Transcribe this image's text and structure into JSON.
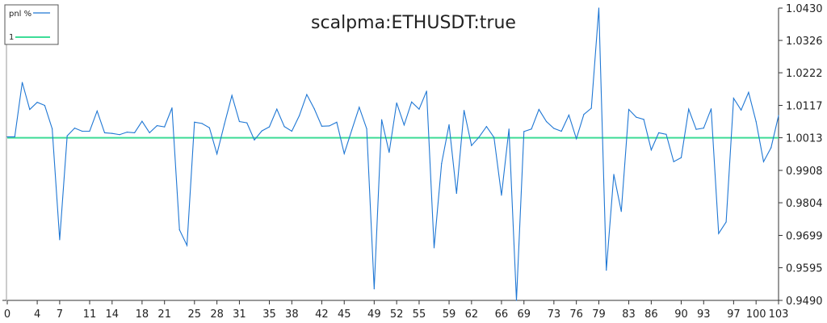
{
  "chart_data": {
    "type": "line",
    "title": "scalpma:ETHUSDT:true",
    "xlabel": "",
    "ylabel": "",
    "xlim": [
      0,
      103
    ],
    "ylim": [
      0.949,
      1.043
    ],
    "x_ticks": [
      0,
      4,
      7,
      11,
      14,
      18,
      21,
      25,
      28,
      31,
      35,
      38,
      42,
      45,
      49,
      52,
      55,
      59,
      62,
      66,
      69,
      73,
      76,
      79,
      83,
      86,
      90,
      93,
      97,
      100,
      103
    ],
    "y_ticks": [
      "1.0430",
      "1.0326",
      "1.0222",
      "1.0117",
      "1.0013",
      "0.9908",
      "0.9804",
      "0.9699",
      "0.9595",
      "0.9490"
    ],
    "y_axis_side": "right",
    "grid": false,
    "legend_position": "top-left",
    "series": [
      {
        "name": "pnl %",
        "color": "#1f77d4",
        "values": [
          1.0016,
          1.0016,
          1.0191,
          1.0104,
          1.0127,
          1.0117,
          1.0042,
          0.9685,
          1.0019,
          1.0044,
          1.0034,
          1.0034,
          1.0099,
          1.0029,
          1.0027,
          1.0023,
          1.0031,
          1.0029,
          1.0066,
          1.0029,
          1.0052,
          1.0048,
          1.0109,
          0.9717,
          0.9667,
          1.0063,
          1.0059,
          1.0045,
          0.9961,
          1.0057,
          1.0149,
          1.0065,
          1.0061,
          1.0006,
          1.0035,
          1.0048,
          1.0105,
          1.0049,
          1.0034,
          1.0084,
          1.0152,
          1.0106,
          1.005,
          1.0051,
          1.0063,
          0.9962,
          1.0037,
          1.0111,
          1.0042,
          0.9527,
          1.0071,
          0.9966,
          1.0125,
          1.0054,
          1.0128,
          1.0105,
          1.0163,
          0.9659,
          0.993,
          1.0055,
          0.9834,
          1.0101,
          0.9988,
          1.0015,
          1.0049,
          1.0014,
          0.9828,
          1.0041,
          0.949,
          1.0033,
          1.0041,
          1.0104,
          1.0065,
          1.0043,
          1.0034,
          1.0086,
          1.001,
          1.0088,
          1.0108,
          1.043,
          0.9587,
          0.9895,
          0.9776,
          1.0104,
          1.0079,
          1.0072,
          0.9974,
          1.0029,
          1.0024,
          0.9936,
          0.9949,
          1.0105,
          1.004,
          1.0044,
          1.0106,
          0.9705,
          0.9742,
          1.014,
          1.0102,
          1.0159,
          1.0065,
          0.9936,
          0.9981,
          1.0084
        ]
      },
      {
        "name": "1",
        "color": "#3ddc97",
        "values": [
          1.0013,
          1.0013
        ]
      }
    ]
  }
}
